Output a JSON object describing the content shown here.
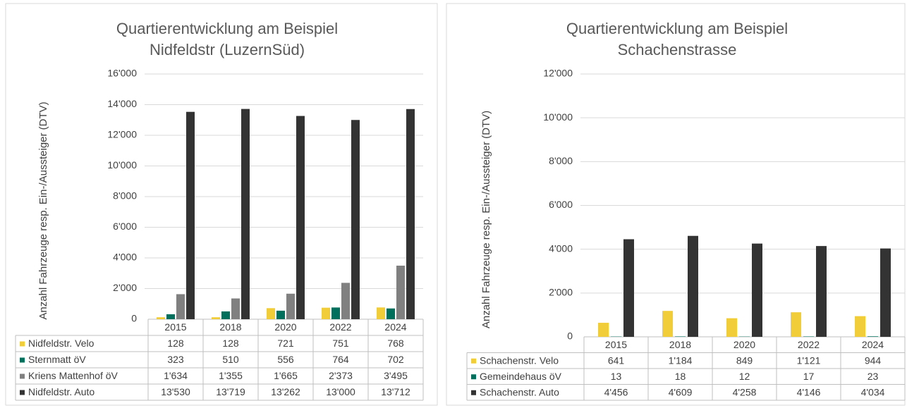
{
  "chart_data": [
    {
      "type": "bar",
      "title": [
        "Quartierentwicklung am Beispiel",
        "Nidfeldstr (LuzernSüd)"
      ],
      "y_label": "Anzahl Fahrzeuge resp. Ein-/Aussteiger (DTV)",
      "categories": [
        "2015",
        "2018",
        "2020",
        "2022",
        "2024"
      ],
      "series": [
        {
          "name": "Nidfeldstr. Velo",
          "color": "#f2cd3a",
          "values": [
            128,
            128,
            721,
            751,
            768
          ],
          "value_labels": [
            "128",
            "128",
            "721",
            "751",
            "768"
          ]
        },
        {
          "name": "Sternmatt öV",
          "color": "#00705c",
          "values": [
            323,
            510,
            556,
            764,
            702
          ],
          "value_labels": [
            "323",
            "510",
            "556",
            "764",
            "702"
          ]
        },
        {
          "name": "Kriens Mattenhof öV",
          "color": "#808080",
          "values": [
            1634,
            1355,
            1665,
            2373,
            3495
          ],
          "value_labels": [
            "1'634",
            "1'355",
            "1'665",
            "2'373",
            "3'495"
          ]
        },
        {
          "name": "Nidfeldstr. Auto",
          "color": "#333333",
          "values": [
            13530,
            13719,
            13262,
            13000,
            13712
          ],
          "value_labels": [
            "13'530",
            "13'719",
            "13'262",
            "13'000",
            "13'712"
          ]
        }
      ],
      "ylim": [
        0,
        16000
      ],
      "yticks": [
        0,
        {
          "value": 2000,
          "label": "2'000"
        },
        {
          "value": 4000,
          "label": "4'000"
        },
        {
          "value": 6000,
          "label": "6'000"
        },
        {
          "value": 8000,
          "label": "8'000"
        },
        {
          "value": 10000,
          "label": "10'000"
        },
        {
          "value": 12000,
          "label": "12'000"
        },
        {
          "value": 14000,
          "label": "14'000"
        },
        {
          "value": 16000,
          "label": "16'000"
        }
      ],
      "grid": true
    },
    {
      "type": "bar",
      "title": [
        "Quartierentwicklung am Beispiel",
        "Schachenstrasse"
      ],
      "y_label": "Anzahl Fahrzeuge resp. Ein-/Aussteiger (DTV)",
      "categories": [
        "2015",
        "2018",
        "2020",
        "2022",
        "2024"
      ],
      "series": [
        {
          "name": "Schachenstr. Velo",
          "color": "#f2cd3a",
          "values": [
            641,
            1184,
            849,
            1121,
            944
          ],
          "value_labels": [
            "641",
            "1'184",
            "849",
            "1'121",
            "944"
          ]
        },
        {
          "name": "Gemeindehaus öV",
          "color": "#00705c",
          "values": [
            13,
            18,
            12,
            17,
            23
          ],
          "value_labels": [
            "13",
            "18",
            "12",
            "17",
            "23"
          ]
        },
        {
          "name": "Schachenstr. Auto",
          "color": "#333333",
          "values": [
            4456,
            4609,
            4258,
            4146,
            4034
          ],
          "value_labels": [
            "4'456",
            "4'609",
            "4'258",
            "4'146",
            "4'034"
          ]
        }
      ],
      "ylim": [
        0,
        12000
      ],
      "yticks": [
        0,
        {
          "value": 2000,
          "label": "2'000"
        },
        {
          "value": 4000,
          "label": "4'000"
        },
        {
          "value": 6000,
          "label": "6'000"
        },
        {
          "value": 8000,
          "label": "8'000"
        },
        {
          "value": 10000,
          "label": "10'000"
        },
        {
          "value": 12000,
          "label": "12'000"
        }
      ],
      "grid": true
    }
  ]
}
